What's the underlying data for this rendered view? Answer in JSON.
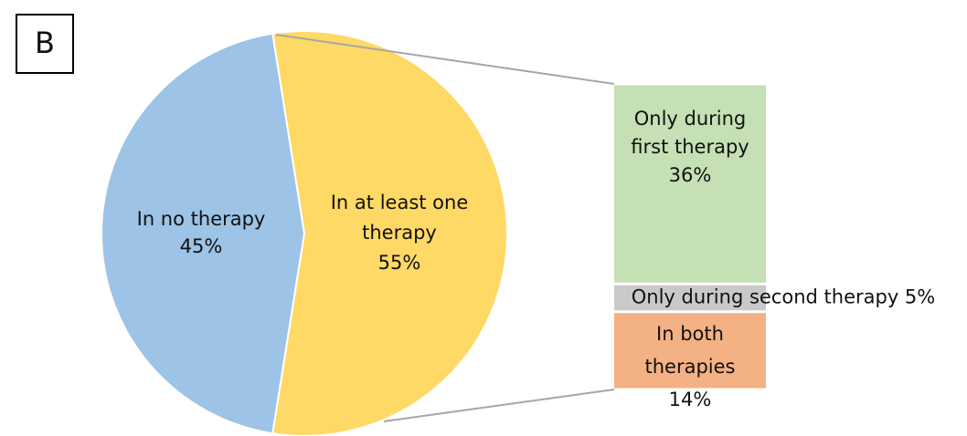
{
  "panel_label": "B",
  "chart_data": {
    "type": "pie-of-bar",
    "pie": {
      "categories": [
        "In no therapy",
        "In at least one therapy"
      ],
      "values": [
        45,
        55
      ],
      "value_labels": [
        "45%",
        "55%"
      ],
      "colors": [
        "#9dc3e6",
        "#ffd966"
      ]
    },
    "bar": {
      "categories": [
        "Only during first therapy",
        "Only during second therapy",
        "In both therapies"
      ],
      "values": [
        36,
        5,
        14
      ],
      "value_labels": [
        "36%",
        "5%",
        "14%"
      ],
      "colors": [
        "#c5e0b4",
        "#c9c9c9",
        "#f4b183"
      ]
    }
  }
}
